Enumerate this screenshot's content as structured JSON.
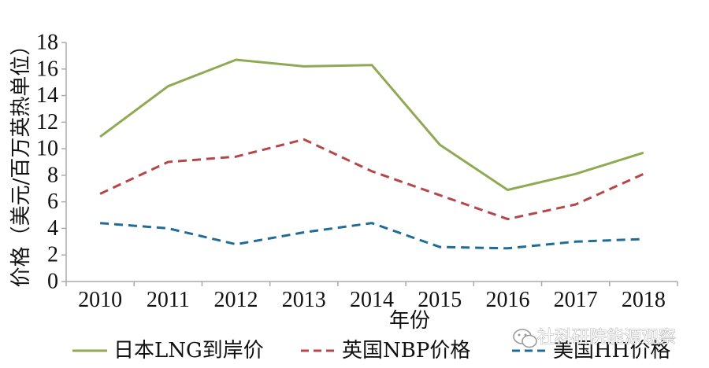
{
  "chart_data": {
    "type": "line",
    "categories": [
      "2010",
      "2011",
      "2012",
      "2013",
      "2014",
      "2015",
      "2016",
      "2017",
      "2018"
    ],
    "series": [
      {
        "name": "日本LNG到岸价",
        "values": [
          10.9,
          14.7,
          16.7,
          16.2,
          16.3,
          10.3,
          6.9,
          8.1,
          9.7
        ],
        "color": "#8faa55",
        "dash": "solid"
      },
      {
        "name": "英国NBP价格",
        "values": [
          6.6,
          9.0,
          9.4,
          10.7,
          8.3,
          6.5,
          4.7,
          5.8,
          8.1
        ],
        "color": "#b5474a",
        "dash": "dashed"
      },
      {
        "name": "美国HH价格",
        "values": [
          4.4,
          4.0,
          2.8,
          3.7,
          4.4,
          2.6,
          2.5,
          3.0,
          3.2
        ],
        "color": "#1f6b9a",
        "dash": "dashed"
      }
    ],
    "xlabel": "年份",
    "ylabel": "价格（美元/百万英热单位）",
    "ylim": [
      0,
      18
    ],
    "yticks": [
      0,
      2,
      4,
      6,
      8,
      10,
      12,
      14,
      16,
      18
    ],
    "grid": false,
    "legend_position": "bottom"
  },
  "watermark": {
    "text": "社科研院能源观察",
    "icon": "wechat-icon"
  }
}
